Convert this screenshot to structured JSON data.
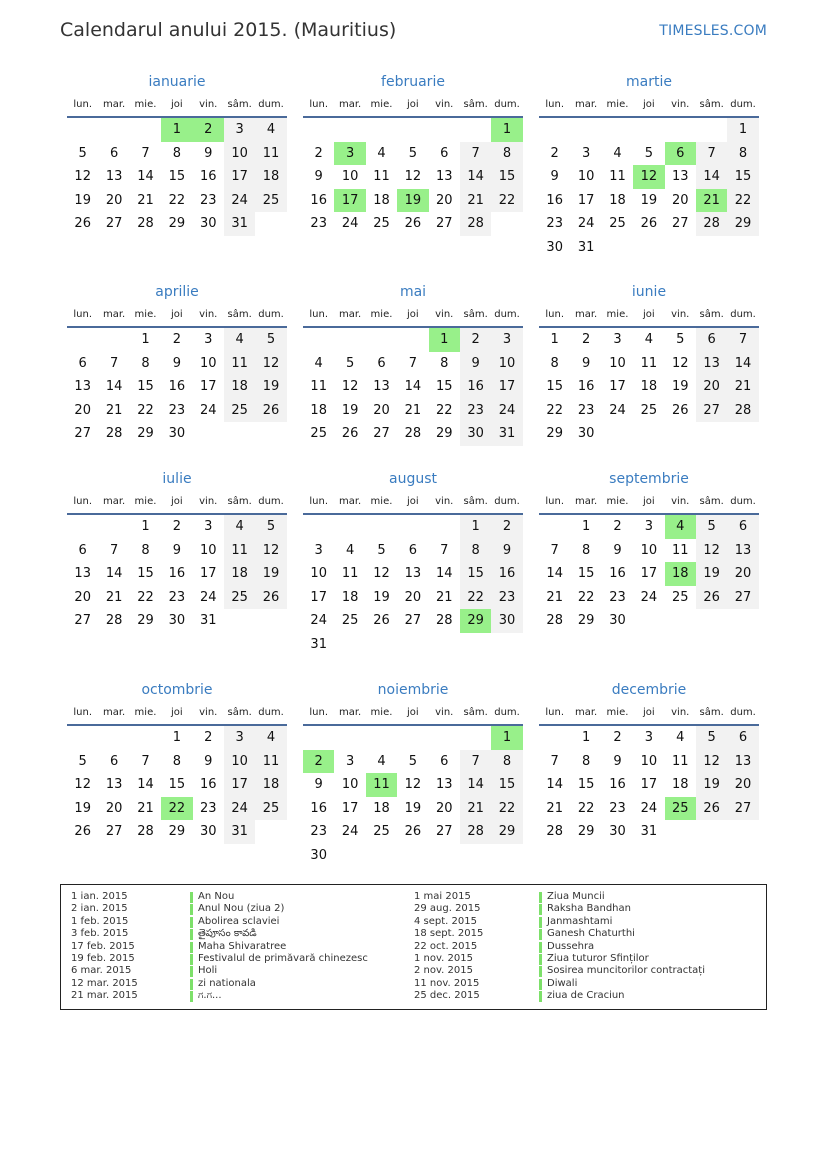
{
  "header": {
    "title": "Calendarul anului 2015. (Mauritius)",
    "brand": "TIMESLES.COM"
  },
  "weekdays": [
    "lun.",
    "mar.",
    "mie.",
    "joi",
    "vin.",
    "sâm.",
    "dum."
  ],
  "colors": {
    "accent": "#3a7cc0",
    "holiday": "#98f08a",
    "weekend": "#f2f2f2"
  },
  "months": [
    {
      "name": "ianuarie",
      "start_weekday": 3,
      "days": 31,
      "holidays": [
        1,
        2
      ]
    },
    {
      "name": "februarie",
      "start_weekday": 6,
      "days": 28,
      "holidays": [
        1,
        3,
        17,
        19
      ]
    },
    {
      "name": "martie",
      "start_weekday": 6,
      "days": 31,
      "holidays": [
        6,
        12,
        21
      ]
    },
    {
      "name": "aprilie",
      "start_weekday": 2,
      "days": 30,
      "holidays": []
    },
    {
      "name": "mai",
      "start_weekday": 4,
      "days": 31,
      "holidays": [
        1
      ]
    },
    {
      "name": "iunie",
      "start_weekday": 0,
      "days": 30,
      "holidays": []
    },
    {
      "name": "iulie",
      "start_weekday": 2,
      "days": 31,
      "holidays": []
    },
    {
      "name": "august",
      "start_weekday": 5,
      "days": 31,
      "holidays": [
        29
      ]
    },
    {
      "name": "septembrie",
      "start_weekday": 1,
      "days": 30,
      "holidays": [
        4,
        18
      ]
    },
    {
      "name": "octombrie",
      "start_weekday": 3,
      "days": 31,
      "holidays": [
        22
      ]
    },
    {
      "name": "noiembrie",
      "start_weekday": 6,
      "days": 30,
      "holidays": [
        1,
        2,
        11
      ]
    },
    {
      "name": "decembrie",
      "start_weekday": 1,
      "days": 31,
      "holidays": [
        25
      ]
    }
  ],
  "legend": {
    "left": [
      {
        "date": "1 ian. 2015",
        "name": "An Nou"
      },
      {
        "date": "2 ian. 2015",
        "name": "Anul Nou (ziua 2)"
      },
      {
        "date": "1 feb. 2015",
        "name": "Abolirea sclaviei"
      },
      {
        "date": "3 feb. 2015",
        "name": "తైపూసం కావడి"
      },
      {
        "date": "17 feb. 2015",
        "name": "Maha Shivaratree"
      },
      {
        "date": "19 feb. 2015",
        "name": "Festivalul de primăvară chinezesc"
      },
      {
        "date": "6 mar. 2015",
        "name": "Holi"
      },
      {
        "date": "12 mar. 2015",
        "name": "zi nationala"
      },
      {
        "date": "21 mar. 2015",
        "name": "ಗ.ಗ..."
      }
    ],
    "right": [
      {
        "date": "1 mai 2015",
        "name": "Ziua Muncii"
      },
      {
        "date": "29 aug. 2015",
        "name": "Raksha Bandhan"
      },
      {
        "date": "4 sept. 2015",
        "name": "Janmashtami"
      },
      {
        "date": "18 sept. 2015",
        "name": "Ganesh Chaturthi"
      },
      {
        "date": "22 oct. 2015",
        "name": "Dussehra"
      },
      {
        "date": "1 nov. 2015",
        "name": "Ziua tuturor Sfinților"
      },
      {
        "date": "2 nov. 2015",
        "name": "Sosirea muncitorilor contractați"
      },
      {
        "date": "11 nov. 2015",
        "name": "Diwali"
      },
      {
        "date": "25 dec. 2015",
        "name": "ziua de Craciun"
      }
    ]
  }
}
